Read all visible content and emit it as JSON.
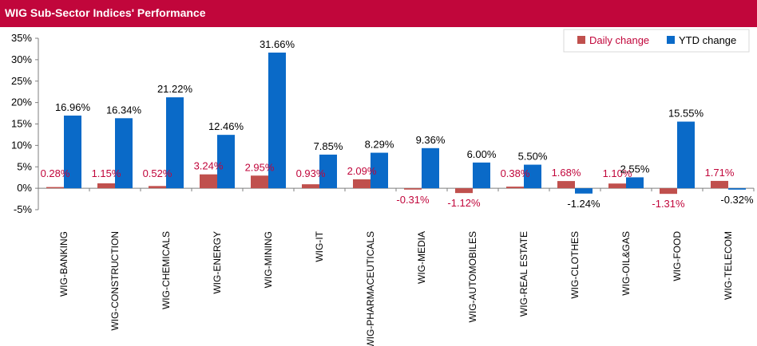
{
  "header": {
    "title": "WIG Sub-Sector Indices' Performance"
  },
  "colors": {
    "title_bar": "#c1063b",
    "daily": "#c0504d",
    "ytd": "#0a6ac8",
    "daily_label": "#c1063b",
    "ytd_label": "#000000"
  },
  "chart_data": {
    "type": "bar",
    "title": "WIG Sub-Sector Indices' Performance",
    "categories": [
      "WIG-BANKING",
      "WIG-CONSTRUCTION",
      "WIG-CHEMICALS",
      "WIG-ENERGY",
      "WIG-MINING",
      "WIG-IT",
      "WIG-PHARMACEUTICALS",
      "WIG-MEDIA",
      "WIG-AUTOMOBILES",
      "WIG-REAL ESTATE",
      "WIG-CLOTHES",
      "WIG-OIL&GAS",
      "WIG-FOOD",
      "WIG-TELECOM"
    ],
    "series": [
      {
        "name": "Daily change",
        "values": [
          0.28,
          1.15,
          0.52,
          3.24,
          2.95,
          0.93,
          2.09,
          -0.31,
          -1.12,
          0.38,
          1.68,
          1.1,
          -1.31,
          1.71
        ],
        "labels": [
          "0.28%",
          "1.15%",
          "0.52%",
          "3.24%",
          "2.95%",
          "0.93%",
          "2.09%",
          "-0.31%",
          "-1.12%",
          "0.38%",
          "1.68%",
          "1.10%",
          "-1.31%",
          "1.71%"
        ]
      },
      {
        "name": "YTD change",
        "values": [
          16.96,
          16.34,
          21.22,
          12.46,
          31.66,
          7.85,
          8.29,
          9.36,
          6.0,
          5.5,
          -1.24,
          2.55,
          15.55,
          -0.32
        ],
        "labels": [
          "16.96%",
          "16.34%",
          "21.22%",
          "12.46%",
          "31.66%",
          "7.85%",
          "8.29%",
          "9.36%",
          "6.00%",
          "5.50%",
          "-1.24%",
          "2.55%",
          "15.55%",
          "-0.32%"
        ]
      }
    ],
    "ylim": [
      -5,
      35
    ],
    "yticks": [
      -5,
      0,
      5,
      10,
      15,
      20,
      25,
      30,
      35
    ],
    "ytick_labels": [
      "-5%",
      "0%",
      "5%",
      "10%",
      "15%",
      "20%",
      "25%",
      "30%",
      "35%"
    ],
    "legend_position": "top-right",
    "grid": false
  }
}
